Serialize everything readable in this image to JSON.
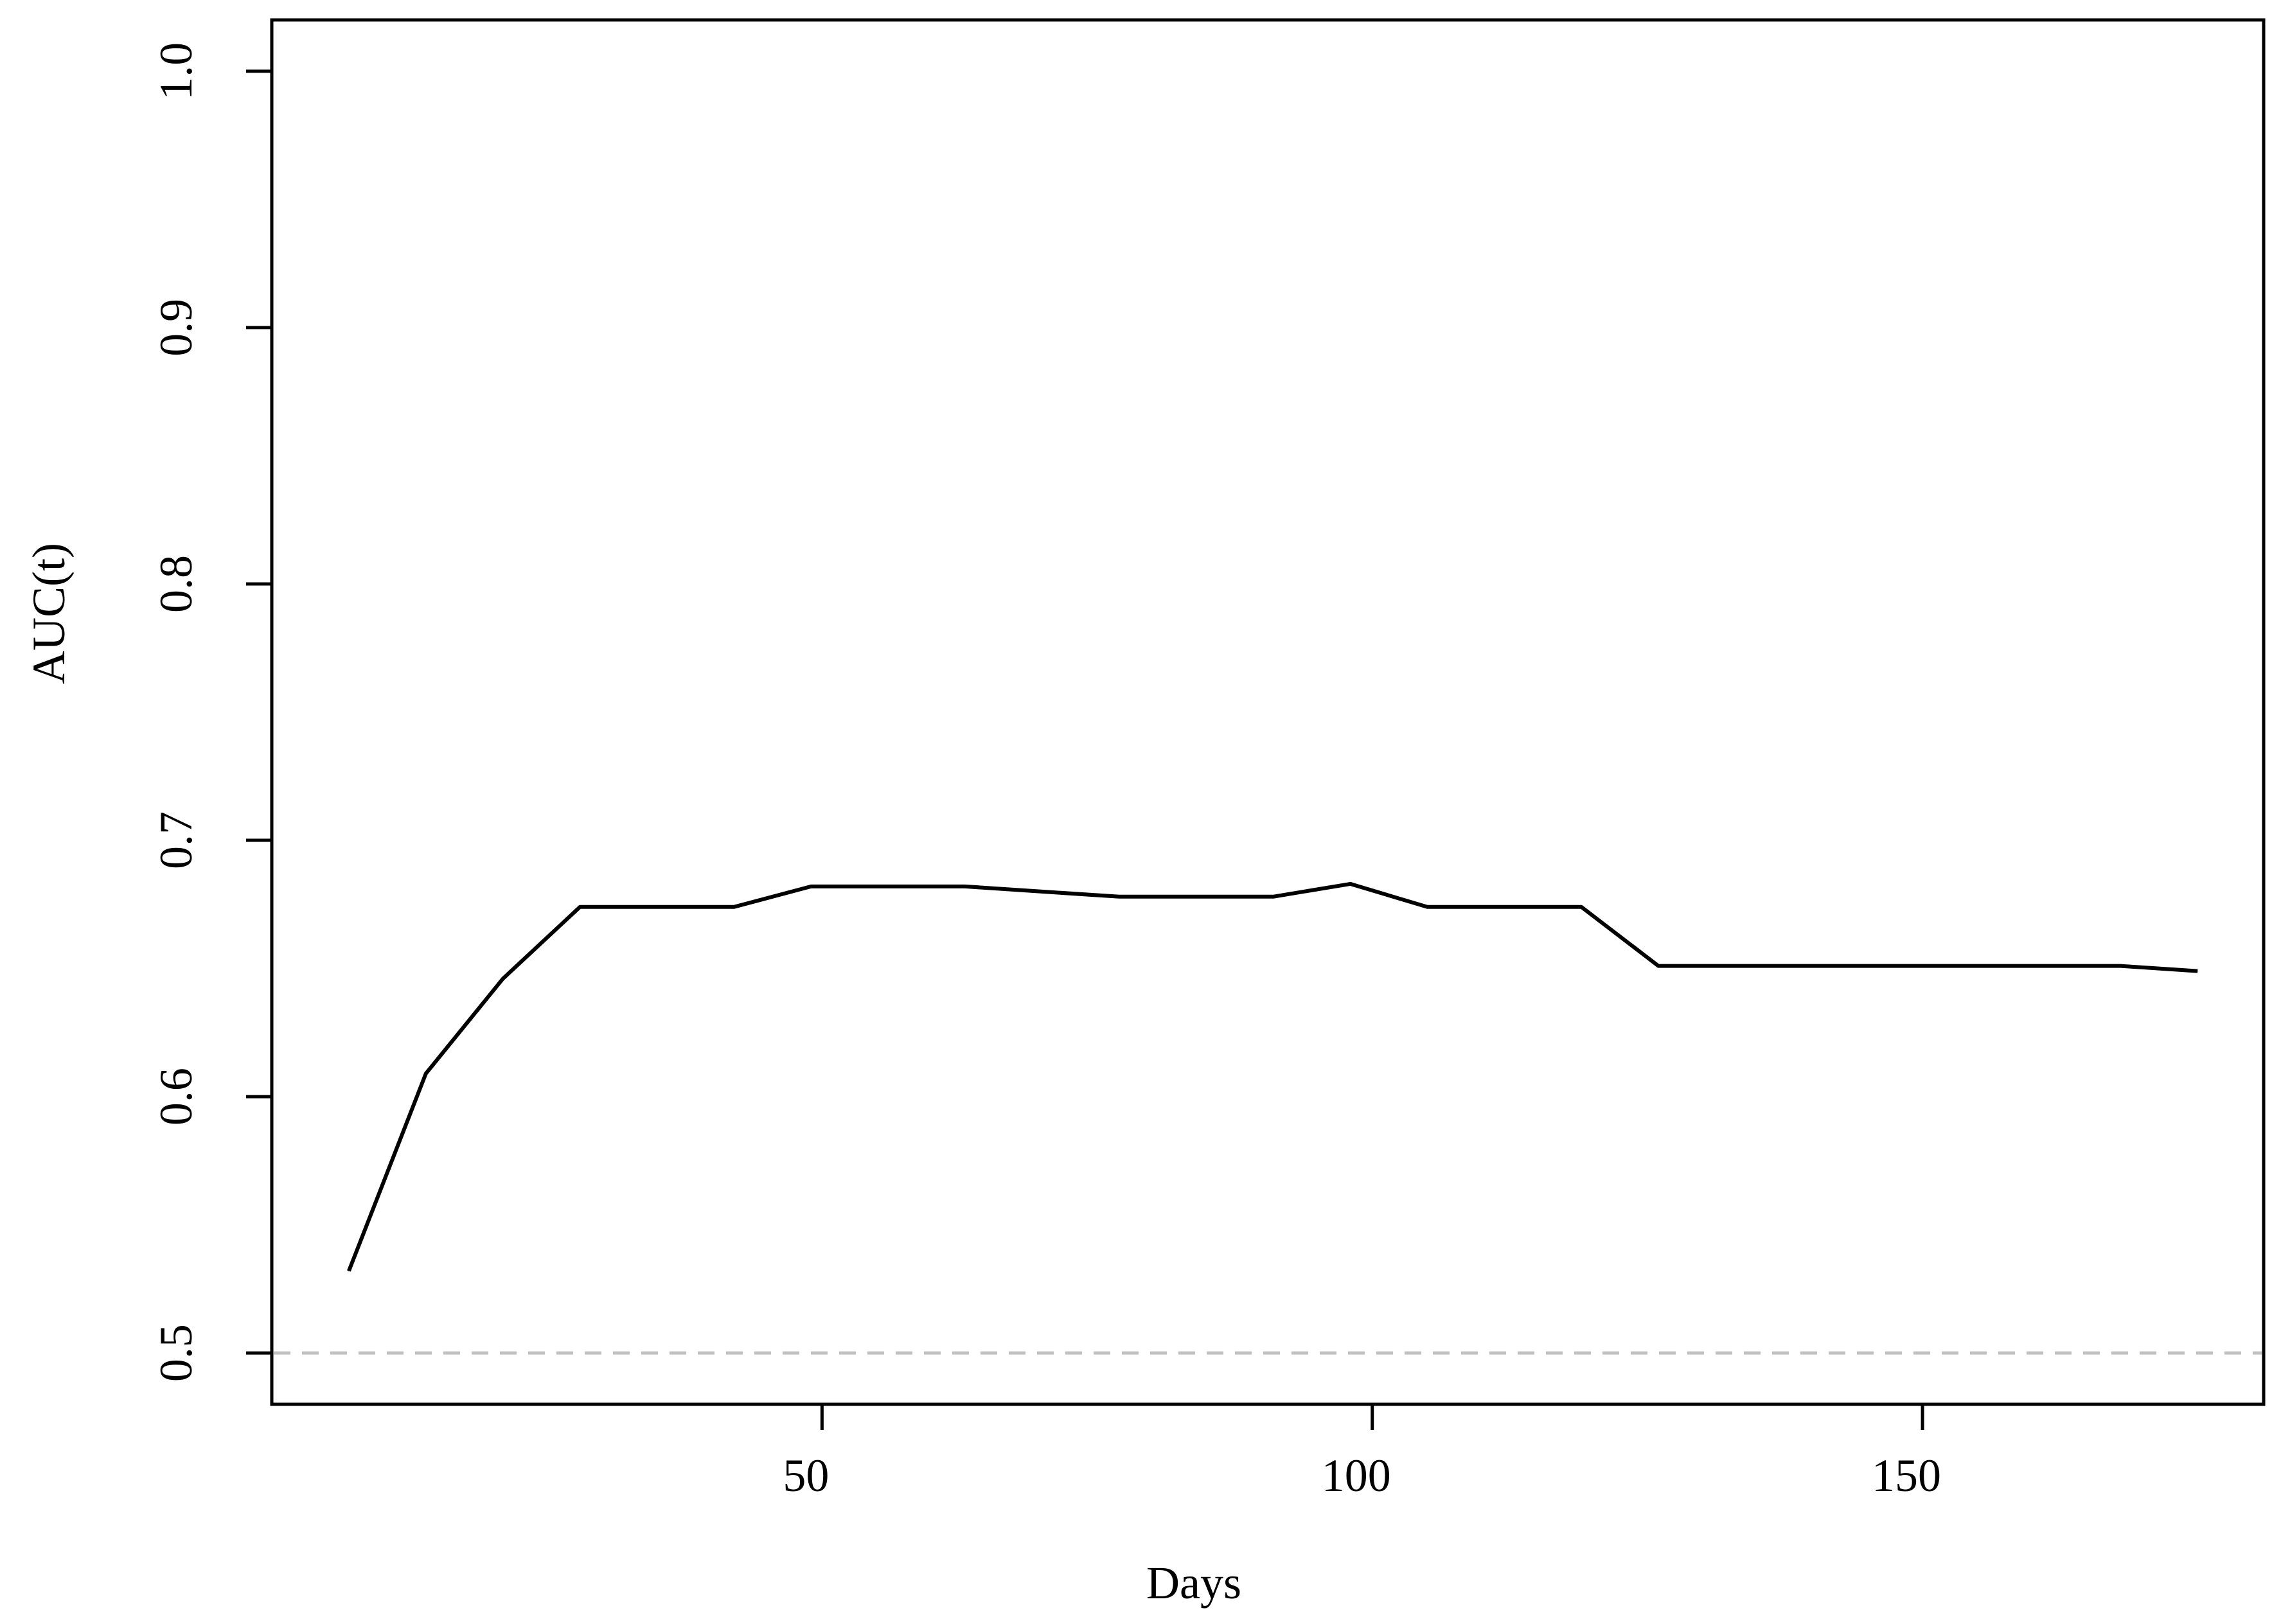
{
  "chart_data": {
    "type": "line",
    "title": "",
    "xlabel": "Days",
    "ylabel": "AUC(t)",
    "xlim": [
      0,
      181
    ],
    "ylim": [
      0.48,
      1.02
    ],
    "x_ticks": [
      {
        "value": 50,
        "label": "50"
      },
      {
        "value": 100,
        "label": "100"
      },
      {
        "value": 150,
        "label": "150"
      }
    ],
    "y_ticks": [
      {
        "value": 0.5,
        "label": "0.5"
      },
      {
        "value": 0.6,
        "label": "0.6"
      },
      {
        "value": 0.7,
        "label": "0.7"
      },
      {
        "value": 0.8,
        "label": "0.8"
      },
      {
        "value": 0.9,
        "label": "0.9"
      },
      {
        "value": 1.0,
        "label": "1.0"
      }
    ],
    "grid": false,
    "series": [
      {
        "color": "#000000",
        "x": [
          7,
          14,
          21,
          28,
          35,
          42,
          49,
          56,
          63,
          70,
          77,
          84,
          91,
          98,
          105,
          112,
          119,
          126,
          133,
          140,
          147,
          154,
          161,
          168,
          175
        ],
        "y": [
          0.532,
          0.609,
          0.646,
          0.674,
          0.674,
          0.674,
          0.682,
          0.682,
          0.682,
          0.68,
          0.678,
          0.678,
          0.678,
          0.683,
          0.674,
          0.674,
          0.674,
          0.651,
          0.651,
          0.651,
          0.651,
          0.651,
          0.651,
          0.651,
          0.649
        ]
      }
    ],
    "reference_line": {
      "y": 0.5,
      "style": "dashed",
      "color": "#c0c0c0"
    }
  }
}
